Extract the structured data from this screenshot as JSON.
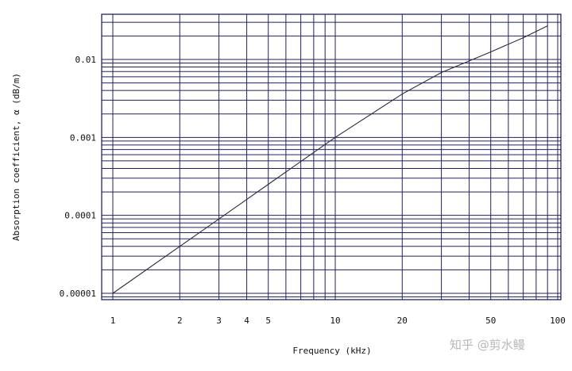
{
  "chart_data": {
    "type": "line",
    "xlabel": "Frequency (kHz)",
    "ylabel": "Absorption coefficient, α (dB/m)",
    "xscale": "log",
    "yscale": "log",
    "xlim": [
      1,
      100
    ],
    "ylim": [
      8e-06,
      0.032
    ],
    "grid": true,
    "x_ticks": [
      {
        "value": 1,
        "label": "1"
      },
      {
        "value": 2,
        "label": "2"
      },
      {
        "value": 3,
        "label": "3"
      },
      {
        "value": 4,
        "label": "4"
      },
      {
        "value": 5,
        "label": "5"
      },
      {
        "value": 10,
        "label": "10"
      },
      {
        "value": 20,
        "label": "20"
      },
      {
        "value": 50,
        "label": "50"
      },
      {
        "value": 100,
        "label": "100"
      }
    ],
    "y_ticks": [
      {
        "value": 1e-05,
        "label": "0.00001"
      },
      {
        "value": 0.0001,
        "label": "0.0001"
      },
      {
        "value": 0.001,
        "label": "0.001"
      },
      {
        "value": 0.01,
        "label": "0.01"
      }
    ],
    "series": [
      {
        "color": "#2b2b3a",
        "points": [
          [
            1,
            1e-05
          ],
          [
            2,
            4e-05
          ],
          [
            3,
            9e-05
          ],
          [
            5,
            0.00025
          ],
          [
            10,
            0.001
          ],
          [
            20,
            0.0036
          ],
          [
            30,
            0.0068
          ],
          [
            50,
            0.0125
          ],
          [
            70,
            0.019
          ],
          [
            90,
            0.027
          ]
        ]
      }
    ]
  },
  "watermark": "知乎 @剪水鳗",
  "colors": {
    "grid": "#23235a",
    "line": "#2b2b3a",
    "text": "#111111"
  }
}
